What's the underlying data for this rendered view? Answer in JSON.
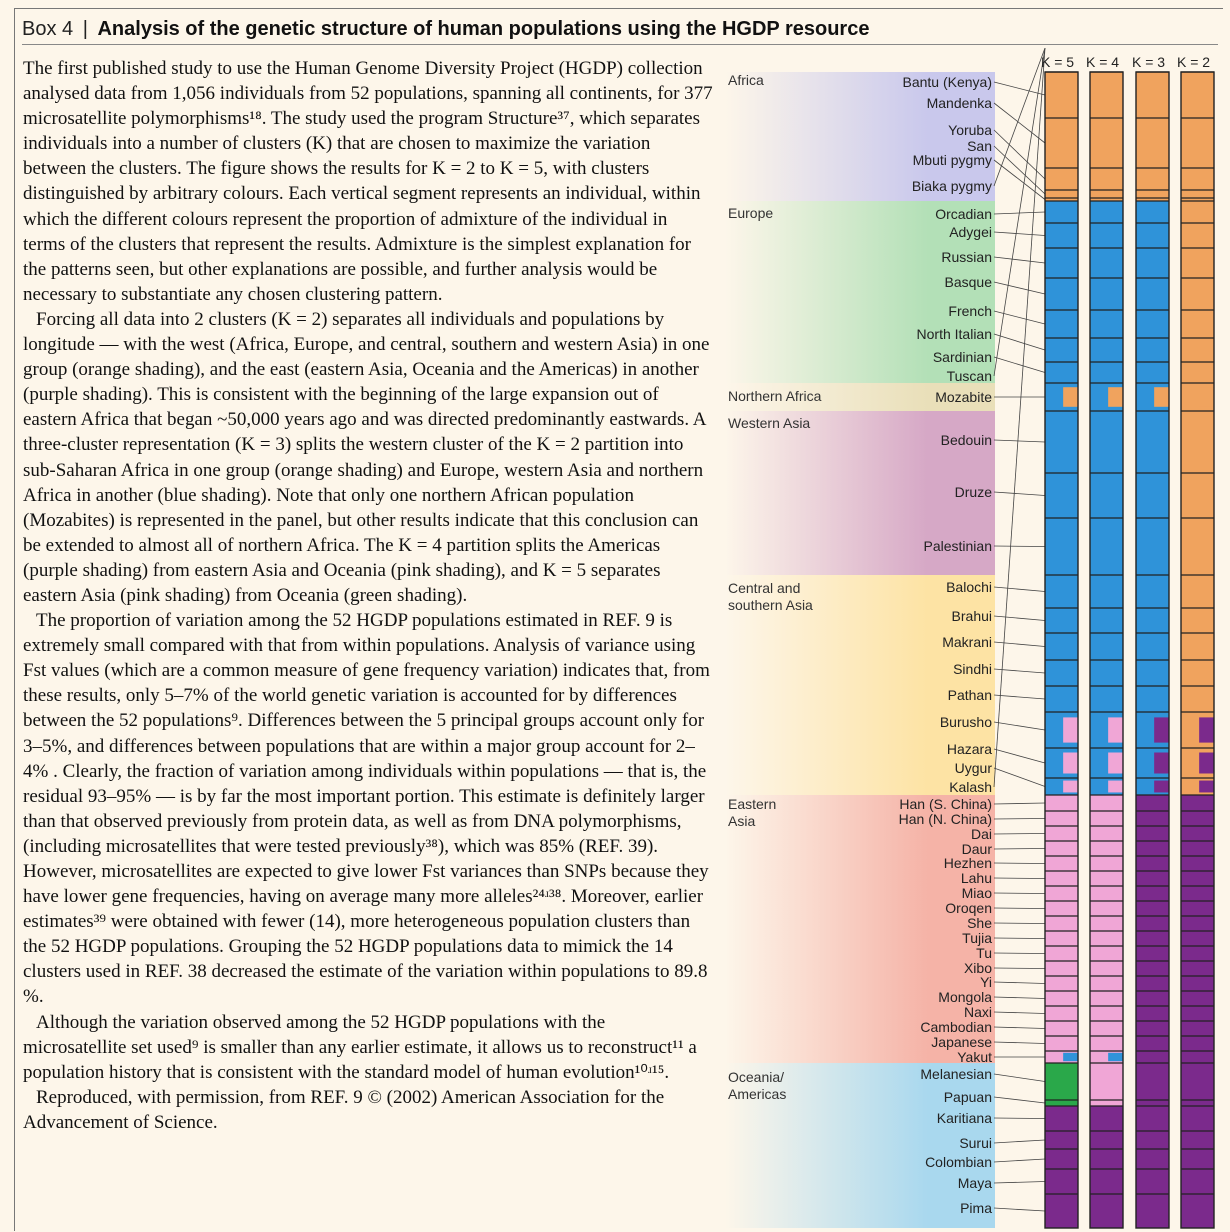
{
  "box": {
    "label": "Box 4",
    "separator": "|",
    "title": "Analysis of the genetic structure of human populations using the HGDP resource"
  },
  "paragraphs": [
    "The first published study to use the Human Genome Diversity Project (HGDP) collection analysed data from 1,056 individuals from 52 populations, spanning all continents, for 377 microsatellite polymorphisms¹⁸. The study used the program Structure³⁷, which separates individuals into a number of clusters (K) that are chosen to maximize the variation between the clusters. The figure shows the results for K = 2 to K = 5, with clusters distinguished by arbitrary colours. Each vertical segment represents an individual, within which the different colours represent the proportion of admixture of the individual in terms of the clusters that represent the results. Admixture is the simplest explanation for the patterns seen, but other explanations are possible, and further analysis would be necessary to substantiate any chosen clustering pattern.",
    "Forcing all data into 2 clusters (K = 2) separates all individuals and populations by longitude — with the west (Africa, Europe, and central, southern and western Asia) in one group (orange shading), and the east (eastern Asia, Oceania and the Americas) in another (purple shading). This is consistent with the beginning of the large expansion out of eastern Africa that began ~50,000 years ago and was directed predominantly eastwards. A three-cluster representation (K = 3) splits the western cluster of the K = 2 partition into sub-Saharan Africa in one group (orange shading) and Europe, western Asia and northern Africa in another (blue shading). Note that only one northern African population (Mozabites) is represented in the panel, but other results indicate that this conclusion can be extended to almost all of northern Africa. The K = 4 partition splits the Americas (purple shading) from eastern Asia and Oceania (pink shading), and K = 5 separates eastern Asia (pink shading) from Oceania (green shading).",
    "The proportion of variation among the 52 HGDP populations estimated in REF. 9 is extremely small compared with that from within populations. Analysis of variance using Fst values (which are a common measure of gene frequency variation) indicates that, from these results, only 5–7% of the world genetic variation is accounted for by differences between the 52 populations⁹. Differences between the 5 principal groups account only for 3–5%, and differences between populations that are within a major group account for 2–4% . Clearly, the fraction of variation among individuals within populations — that is, the residual 93–95% — is by far the most important portion. This estimate is definitely larger than that observed previously from protein data, as well as from DNA polymorphisms, (including microsatellites that were tested previously³⁸), which was 85% (REF. 39). However, microsatellites are expected to give lower Fst variances than SNPs because they have lower gene frequencies, having on average many more alleles²⁴ʴ³⁸. Moreover, earlier estimates³⁹ were obtained with fewer (14), more heterogeneous population clusters than the 52 HGDP populations. Grouping the 52 HGDP populations data to mimick the 14 clusters used in REF. 38 decreased the estimate of the variation within populations to 89.8 %.",
    "Although the variation observed among the 52 HGDP populations with the microsatellite set used⁹ is smaller than any earlier estimate, it allows us to reconstruct¹¹ a population history that is consistent with the standard model of human evolution¹⁰ʴ¹⁵.",
    "Reproduced, with permission, from REF. 9 © (2002) American Association for the Advancement of Science."
  ],
  "figure": {
    "k_headers": [
      "K = 5",
      "K = 4",
      "K = 3",
      "K = 2"
    ],
    "colors": {
      "orange": "#f0a35e",
      "blue": "#2f93d9",
      "purple": "#7b2a8c",
      "pink": "#f0a6d6",
      "green": "#2aa84a"
    },
    "regions": [
      {
        "name": "Africa",
        "color": "#c9c8ec",
        "populations": [
          "Bantu (Kenya)",
          "Mandenka",
          "Yoruba",
          "San",
          "Mbuti pygmy",
          "Biaka pygmy"
        ]
      },
      {
        "name": "Europe",
        "color": "#b3e0b7",
        "populations": [
          "Orcadian",
          "Adygei",
          "Russian",
          "Basque",
          "French",
          "North Italian",
          "Sardinian",
          "Tuscan"
        ]
      },
      {
        "name": "Northern Africa",
        "color": "#e9dfb9",
        "populations": [
          "Mozabite"
        ]
      },
      {
        "name": "Western Asia",
        "color": "#d6a8c6",
        "populations": [
          "Bedouin",
          "Druze",
          "Palestinian"
        ]
      },
      {
        "name": "Central and\nsouthern Asia",
        "color": "#fde3a4",
        "populations": [
          "Balochi",
          "Brahui",
          "Makrani",
          "Sindhi",
          "Pathan",
          "Burusho",
          "Hazara",
          "Uygur",
          "Kalash"
        ]
      },
      {
        "name": "Eastern\nAsia",
        "color": "#f5b3a7",
        "populations": [
          "Han (S. China)",
          "Han (N. China)",
          "Dai",
          "Daur",
          "Hezhen",
          "Lahu",
          "Miao",
          "Oroqen",
          "She",
          "Tujia",
          "Tu",
          "Xibo",
          "Yi",
          "Mongola",
          "Naxi",
          "Cambodian",
          "Japanese",
          "Yakut"
        ]
      },
      {
        "name": "Oceania/\nAmericas",
        "color": "#a9d8ee",
        "populations": [
          "Melanesian",
          "Papuan",
          "Karitiana",
          "Surui",
          "Colombian",
          "Maya",
          "Pima"
        ]
      }
    ]
  }
}
